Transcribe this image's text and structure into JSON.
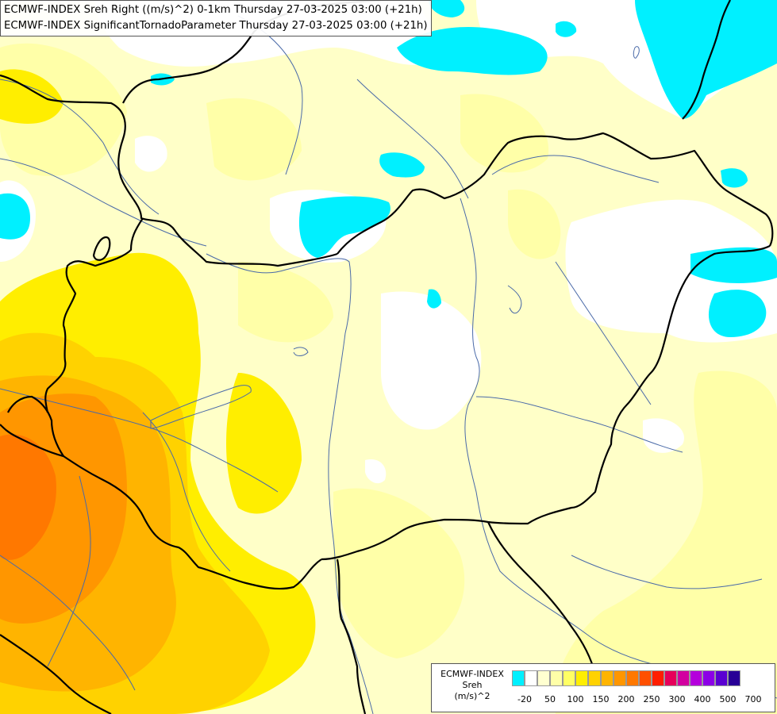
{
  "title": {
    "line1": "ECMWF-INDEX Sreh Right ((m/s)^2) 0-1km Thursday 27-03-2025 03:00 (+21h)",
    "line2": "ECMWF-INDEX SignificantTornadoParameter Thursday 27-03-2025 03:00 (+21h)"
  },
  "legend": {
    "source": "ECMWF-INDEX",
    "variable": "Sreh",
    "unit": "(m/s)^2",
    "colors": [
      "#00f0ff",
      "#ffffff",
      "#ffffd0",
      "#ffffa8",
      "#ffff64",
      "#ffee00",
      "#ffd200",
      "#ffb400",
      "#ff9600",
      "#ff7800",
      "#ff5000",
      "#ff1e00",
      "#e6005a",
      "#d200a0",
      "#b400dc",
      "#8c00e6",
      "#5a00d2",
      "#280096"
    ],
    "tick_labels": [
      "-20",
      "50",
      "100",
      "150",
      "200",
      "250",
      "300",
      "400",
      "500",
      "700"
    ]
  },
  "map": {
    "background_color": "#ffffc8",
    "border_color": "#000000",
    "river_color": "#4a6aa8"
  }
}
